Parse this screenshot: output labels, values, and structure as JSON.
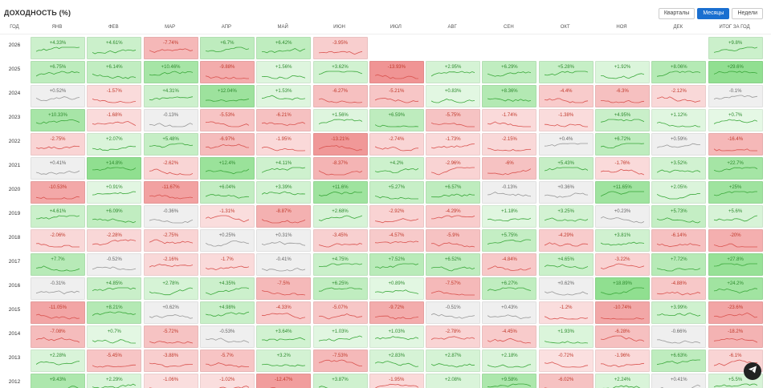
{
  "page": {
    "title": "ДОХОДНОСТЬ (%)"
  },
  "view_tabs": [
    {
      "label": "Кварталы",
      "active": false
    },
    {
      "label": "Месяцы",
      "active": true
    },
    {
      "label": "Недели",
      "active": false
    }
  ],
  "table": {
    "year_header": "ГОД",
    "months": [
      "ЯНВ",
      "ФЕВ",
      "МАР",
      "АПР",
      "МАЙ",
      "ИЮН",
      "ИЮЛ",
      "АВГ",
      "СЕН",
      "ОКТ",
      "НОЯ",
      "ДЕК"
    ],
    "total_header": "ИТОГ ЗА ГОД",
    "rows": [
      {
        "year": "2026",
        "values": [
          "+4.33%",
          "+4.61%",
          "-7.74%",
          "+6.7%",
          "+6.42%",
          "-3.95%",
          null,
          null,
          null,
          null,
          null,
          null
        ],
        "total": "+9.8%"
      },
      {
        "year": "2025",
        "values": [
          "+6.75%",
          "+6.14%",
          "+10.46%",
          "-9.88%",
          "+1.56%",
          "+3.62%",
          "-13.93%",
          "+2.95%",
          "+6.29%",
          "+5.28%",
          "+1.92%",
          "+8.06%"
        ],
        "total": "+29.6%"
      },
      {
        "year": "2024",
        "values": [
          "+0.52%",
          "-1.57%",
          "+4.31%",
          "+12.04%",
          "+1.53%",
          "-6.27%",
          "-5.21%",
          "+0.83%",
          "+8.36%",
          "-4.4%",
          "-6.3%",
          "-2.12%"
        ],
        "total": "-0.1%"
      },
      {
        "year": "2023",
        "values": [
          "+10.33%",
          "-1.68%",
          "-0.13%",
          "-5.53%",
          "-6.21%",
          "+1.56%",
          "+6.59%",
          "-5.75%",
          "-1.74%",
          "-1.38%",
          "+4.95%",
          "+1.12%"
        ],
        "total": "+0.7%"
      },
      {
        "year": "2022",
        "values": [
          "-2.75%",
          "+2.07%",
          "+5.48%",
          "-6.97%",
          "-1.95%",
          "-13.21%",
          "-2.74%",
          "-1.73%",
          "-2.15%",
          "+0.4%",
          "+6.72%",
          "+0.59%"
        ],
        "total": "-16.4%"
      },
      {
        "year": "2021",
        "values": [
          "+0.41%",
          "+14.8%",
          "-2.62%",
          "+12.4%",
          "+4.11%",
          "-8.37%",
          "+4.2%",
          "-2.96%",
          "-6%",
          "+5.43%",
          "-1.76%",
          "+3.52%"
        ],
        "total": "+22.7%"
      },
      {
        "year": "2020",
        "values": [
          "-10.53%",
          "+0.91%",
          "-11.67%",
          "+6.04%",
          "+3.39%",
          "+11.6%",
          "+5.27%",
          "+6.57%",
          "-0.13%",
          "+0.36%",
          "+11.65%",
          "+2.05%"
        ],
        "total": "+25%"
      },
      {
        "year": "2019",
        "values": [
          "+4.61%",
          "+6.09%",
          "-0.36%",
          "-1.31%",
          "-8.87%",
          "+2.68%",
          "-2.92%",
          "-4.29%",
          "+1.18%",
          "+3.25%",
          "+0.23%",
          "+5.73%"
        ],
        "total": "+5.6%"
      },
      {
        "year": "2018",
        "values": [
          "-2.06%",
          "-2.28%",
          "-2.75%",
          "+0.25%",
          "+0.31%",
          "-3.45%",
          "-4.57%",
          "-5.9%",
          "+5.75%",
          "-4.29%",
          "+3.81%",
          "-6.14%"
        ],
        "total": "-20%"
      },
      {
        "year": "2017",
        "values": [
          "+7.7%",
          "-0.52%",
          "-2.16%",
          "-1.7%",
          "-0.41%",
          "+4.75%",
          "+7.52%",
          "+6.52%",
          "-4.84%",
          "+4.65%",
          "-3.22%",
          "+7.72%"
        ],
        "total": "+27.8%"
      },
      {
        "year": "2016",
        "values": [
          "-0.31%",
          "+4.85%",
          "+2.78%",
          "+4.35%",
          "-7.5%",
          "+6.25%",
          "+0.89%",
          "-7.57%",
          "+6.27%",
          "+0.62%",
          "+18.89%",
          "-4.88%"
        ],
        "total": "+24.2%"
      },
      {
        "year": "2015",
        "values": [
          "-11.05%",
          "+8.21%",
          "+0.62%",
          "+4.98%",
          "-4.33%",
          "-5.07%",
          "-9.72%",
          "-0.51%",
          "+0.43%",
          "-1.2%",
          "-10.74%",
          "+3.99%"
        ],
        "total": "-23.6%"
      },
      {
        "year": "2014",
        "values": [
          "-7.08%",
          "+0.7%",
          "-5.72%",
          "-0.53%",
          "+3.64%",
          "+1.03%",
          "+1.03%",
          "-2.78%",
          "-4.45%",
          "+1.93%",
          "-6.28%",
          "-0.66%"
        ],
        "total": "-18.2%"
      },
      {
        "year": "2013",
        "values": [
          "+2.28%",
          "-5.45%",
          "-3.88%",
          "-5.7%",
          "+3.2%",
          "-7.53%",
          "+2.83%",
          "+2.87%",
          "+2.18%",
          "-0.72%",
          "-1.96%",
          "+6.63%"
        ],
        "total": "-6.1%"
      },
      {
        "year": "2012",
        "values": [
          "+9.43%",
          "+2.29%",
          "-1.06%",
          "-1.02%",
          "-12.47%",
          "+3.87%",
          "-1.95%",
          "+2.08%",
          "+9.58%",
          "-6.02%",
          "+2.24%",
          "+0.41%"
        ],
        "total": "+5.5%"
      }
    ]
  },
  "colors": {
    "positive_text": "#2e8b2e",
    "negative_text": "#c0392b",
    "neutral_text": "#666666",
    "positive_line": "#3aa83a",
    "negative_line": "#d9534f",
    "neutral_line": "#999999",
    "accent": "#1a6fd0"
  },
  "icons": {
    "float_button": "telegram-paper-plane-icon"
  }
}
